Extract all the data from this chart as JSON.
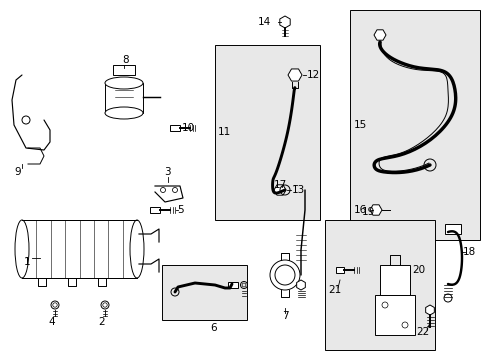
{
  "bg_color": "#ffffff",
  "box_fill": "#e8e8e8",
  "line_color": "#000000",
  "lw": 0.7,
  "label_fs": 7.5,
  "figsize": [
    4.89,
    3.6
  ],
  "dpi": 100
}
